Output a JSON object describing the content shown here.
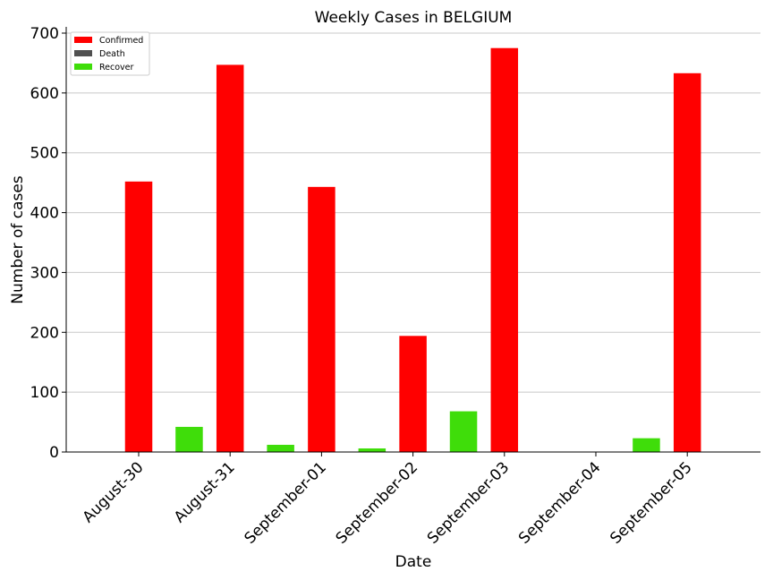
{
  "chart_data": {
    "type": "bar",
    "title": "Weekly Cases in BELGIUM",
    "xlabel": "Date",
    "ylabel": "Number of cases",
    "ylim": [
      0,
      700
    ],
    "yticks": [
      0,
      100,
      200,
      300,
      400,
      500,
      600,
      700
    ],
    "grid": "horizontal",
    "legend_position": "top-left",
    "categories": [
      "August-30",
      "August-31",
      "September-01",
      "September-02",
      "September-03",
      "September-04",
      "September-05"
    ],
    "series": [
      {
        "name": "Confirmed",
        "color": "#ff0000",
        "values": [
          452,
          647,
          443,
          194,
          675,
          0,
          633
        ]
      },
      {
        "name": "Death",
        "color": "#505050",
        "values": [
          0,
          0,
          0,
          0,
          0,
          0,
          0
        ]
      },
      {
        "name": "Recover",
        "color": "#3fdd0a",
        "values": [
          0,
          42,
          12,
          6,
          68,
          0,
          23
        ]
      }
    ]
  }
}
